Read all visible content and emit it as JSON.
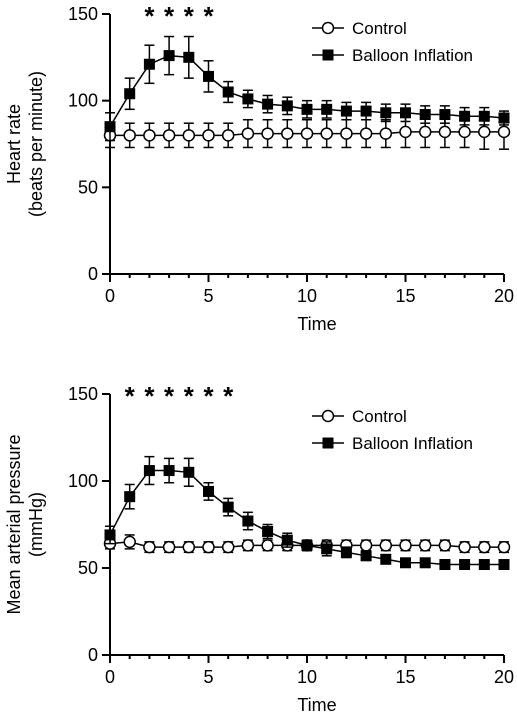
{
  "chart_data": [
    {
      "type": "line",
      "ylabel": "Heart rate",
      "ylabel2": "(beats per minute)",
      "xlabel": "Time",
      "xlim": [
        0,
        20
      ],
      "ylim": [
        0,
        150
      ],
      "xticks": [
        0,
        5,
        10,
        15,
        20
      ],
      "yticks": [
        0,
        50,
        100,
        150
      ],
      "grid": false,
      "legend_position": "top-right",
      "significance_marker": "*",
      "significant_x": [
        2,
        3,
        4,
        5
      ],
      "series": [
        {
          "name": "Control",
          "marker": "open-circle",
          "x": [
            0,
            1,
            2,
            3,
            4,
            5,
            6,
            7,
            8,
            9,
            10,
            11,
            12,
            13,
            14,
            15,
            16,
            17,
            18,
            19,
            20
          ],
          "y": [
            80,
            80,
            80,
            80,
            80,
            80,
            80,
            81,
            81,
            81,
            81,
            81,
            81,
            81,
            81,
            82,
            82,
            82,
            82,
            82,
            82
          ],
          "err": [
            7,
            7,
            7,
            7,
            7,
            7,
            7,
            8,
            8,
            8,
            8,
            8,
            8,
            8,
            8,
            9,
            9,
            9,
            9,
            10,
            10
          ]
        },
        {
          "name": "Balloon Inflation",
          "marker": "filled-square",
          "x": [
            0,
            1,
            2,
            3,
            4,
            5,
            6,
            7,
            8,
            9,
            10,
            11,
            12,
            13,
            14,
            15,
            16,
            17,
            18,
            19,
            20
          ],
          "y": [
            85,
            104,
            121,
            126,
            125,
            114,
            105,
            101,
            98,
            97,
            95,
            95,
            94,
            94,
            93,
            93,
            92,
            92,
            91,
            91,
            90
          ],
          "err": [
            8,
            9,
            11,
            11,
            12,
            9,
            6,
            5,
            5,
            5,
            5,
            5,
            5,
            5,
            5,
            5,
            5,
            5,
            5,
            5,
            4
          ]
        }
      ]
    },
    {
      "type": "line",
      "ylabel": "Mean arterial pressure",
      "ylabel2": "(mmHg)",
      "xlabel": "Time",
      "xlim": [
        0,
        20
      ],
      "ylim": [
        0,
        150
      ],
      "xticks": [
        0,
        5,
        10,
        15,
        20
      ],
      "yticks": [
        0,
        50,
        100,
        150
      ],
      "grid": false,
      "legend_position": "top-right",
      "significance_marker": "*",
      "significant_x": [
        1,
        2,
        3,
        4,
        5,
        6
      ],
      "series": [
        {
          "name": "Control",
          "marker": "open-circle",
          "x": [
            0,
            1,
            2,
            3,
            4,
            5,
            6,
            7,
            8,
            9,
            10,
            11,
            12,
            13,
            14,
            15,
            16,
            17,
            18,
            19,
            20
          ],
          "y": [
            64,
            65,
            62,
            62,
            62,
            62,
            62,
            63,
            63,
            63,
            63,
            63,
            63,
            63,
            63,
            63,
            63,
            63,
            62,
            62,
            62
          ],
          "err": [
            3,
            4,
            3,
            3,
            3,
            3,
            3,
            3,
            3,
            3,
            3,
            3,
            3,
            3,
            3,
            3,
            3,
            3,
            3,
            3,
            3
          ]
        },
        {
          "name": "Balloon Inflation",
          "marker": "filled-square",
          "x": [
            0,
            1,
            2,
            3,
            4,
            5,
            6,
            7,
            8,
            9,
            10,
            11,
            12,
            13,
            14,
            15,
            16,
            17,
            18,
            19,
            20
          ],
          "y": [
            69,
            91,
            106,
            106,
            105,
            94,
            85,
            77,
            71,
            66,
            63,
            61,
            59,
            57,
            55,
            53,
            53,
            52,
            52,
            52,
            52
          ],
          "err": [
            5,
            7,
            8,
            7,
            8,
            5,
            5,
            5,
            4,
            4,
            3,
            4,
            3,
            2,
            2,
            2,
            2,
            2,
            2,
            2,
            2
          ]
        }
      ]
    }
  ]
}
